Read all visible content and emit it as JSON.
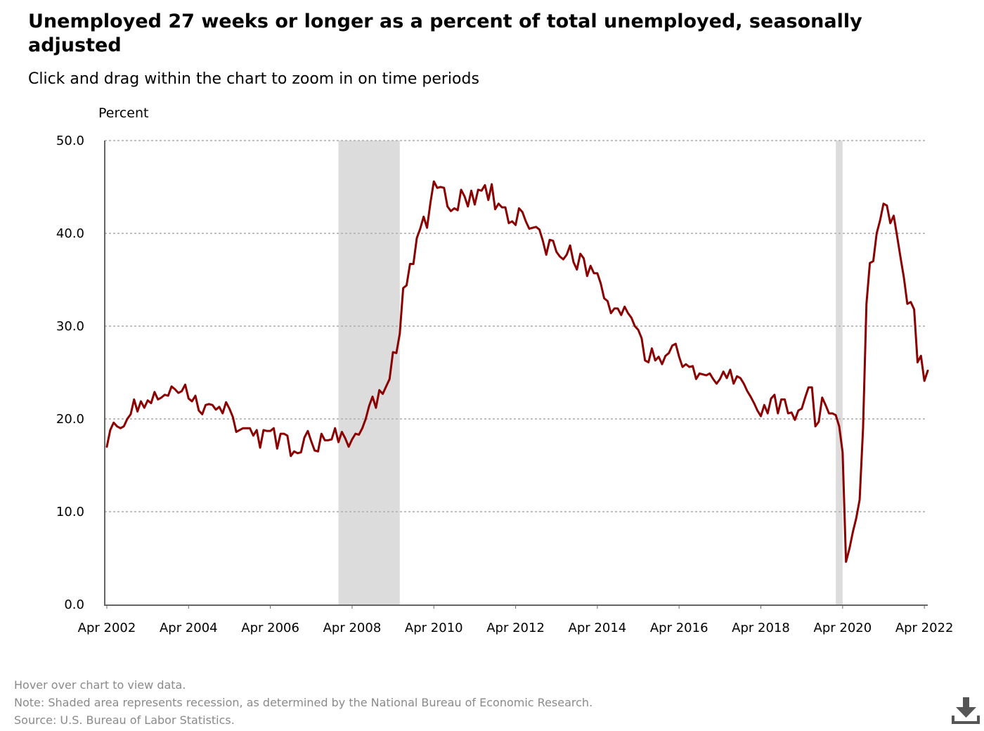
{
  "chart_data": {
    "type": "line",
    "title": "Unemployed 27 weeks or longer as a percent of total unemployed, seasonally adjusted",
    "subtitle": "Click and drag within the chart to zoom in on time periods",
    "ylabel": "Percent",
    "xlabel": "",
    "ylim": [
      0,
      50
    ],
    "y_ticks": [
      "0.0",
      "10.0",
      "20.0",
      "30.0",
      "40.0",
      "50.0"
    ],
    "x_ticks": [
      "Apr 2002",
      "Apr 2004",
      "Apr 2006",
      "Apr 2008",
      "Apr 2010",
      "Apr 2012",
      "Apr 2014",
      "Apr 2016",
      "Apr 2018",
      "Apr 2020",
      "Apr 2022"
    ],
    "x_start": "Apr 2002",
    "x_end": "May 2022",
    "grid": "horizontal dotted",
    "line_color": "#8b0000",
    "recession_color": "#dcdcdc",
    "recessions": [
      {
        "start": "Dec 2007",
        "end": "Jun 2009"
      },
      {
        "start": "Feb 2020",
        "end": "Apr 2020"
      }
    ],
    "series": [
      {
        "x_start": "Apr 2002",
        "values": [
          17.0,
          18.8,
          19.6,
          19.2,
          19.0,
          19.2,
          20.0,
          20.5,
          22.1,
          20.8,
          21.9,
          21.2,
          22.0,
          21.7,
          22.9,
          22.1,
          22.3,
          22.6,
          22.5,
          23.5,
          23.2,
          22.8,
          23.0,
          23.7,
          22.2,
          21.9,
          22.5,
          20.9,
          20.5,
          21.5,
          21.6,
          21.5,
          21.0,
          21.3,
          20.6,
          21.8,
          21.1,
          20.2,
          18.6,
          18.8,
          19.0,
          19.0,
          19.0,
          18.2,
          18.8,
          16.9,
          18.8,
          18.7,
          18.7,
          19.0,
          16.8,
          18.4,
          18.4,
          18.2,
          16.0,
          16.5,
          16.3,
          16.4,
          18.0,
          18.7,
          17.6,
          16.6,
          16.5,
          18.4,
          17.7,
          17.7,
          17.8,
          19.0,
          17.5,
          18.6,
          17.9,
          17.0,
          17.8,
          18.4,
          18.3,
          19.0,
          20.0,
          21.4,
          22.4,
          21.2,
          23.1,
          22.7,
          23.5,
          24.3,
          27.2,
          27.1,
          29.2,
          34.1,
          34.4,
          36.7,
          36.7,
          39.5,
          40.5,
          41.8,
          40.6,
          43.3,
          45.6,
          44.9,
          45.0,
          44.9,
          42.9,
          42.4,
          42.7,
          42.5,
          44.7,
          44.0,
          42.9,
          44.6,
          43.1,
          44.7,
          44.6,
          45.2,
          43.6,
          45.3,
          42.6,
          43.2,
          42.8,
          42.8,
          41.1,
          41.3,
          40.9,
          42.7,
          42.3,
          41.3,
          40.5,
          40.6,
          40.7,
          40.4,
          39.2,
          37.7,
          39.3,
          39.2,
          38.0,
          37.5,
          37.2,
          37.7,
          38.7,
          36.9,
          36.1,
          37.8,
          37.3,
          35.4,
          36.5,
          35.7,
          35.7,
          34.6,
          33.0,
          32.7,
          31.4,
          31.9,
          31.9,
          31.2,
          32.1,
          31.4,
          30.9,
          30.0,
          29.6,
          28.7,
          26.3,
          26.1,
          27.6,
          26.3,
          26.7,
          25.9,
          26.8,
          27.1,
          27.9,
          28.1,
          26.7,
          25.6,
          25.9,
          25.6,
          25.7,
          24.3,
          24.9,
          24.8,
          24.7,
          24.9,
          24.3,
          23.8,
          24.3,
          25.1,
          24.4,
          25.3,
          23.8,
          24.6,
          24.4,
          23.8,
          23.0,
          22.4,
          21.7,
          20.9,
          20.3,
          21.5,
          20.6,
          22.2,
          22.6,
          20.6,
          22.1,
          22.1,
          20.6,
          20.7,
          19.9,
          20.9,
          21.1,
          22.3,
          23.4,
          23.4,
          19.2,
          19.7,
          22.3,
          21.5,
          20.6,
          20.6,
          20.4,
          19.2,
          16.4,
          4.6,
          6.0,
          7.8,
          9.3,
          11.3,
          19.0,
          32.4,
          36.8,
          37.0,
          40.0,
          41.4,
          43.2,
          43.0,
          41.1,
          41.9,
          39.7,
          37.4,
          35.2,
          32.4,
          32.6,
          31.8,
          26.1,
          26.8,
          24.1,
          25.2
        ]
      }
    ]
  },
  "footer": {
    "line1": "Hover over chart to view data.",
    "line2": "Note: Shaded area represents recession, as determined by the National Bureau of Economic Research.",
    "line3": "Source: U.S. Bureau of Labor Statistics."
  },
  "download_icon": "download-icon"
}
